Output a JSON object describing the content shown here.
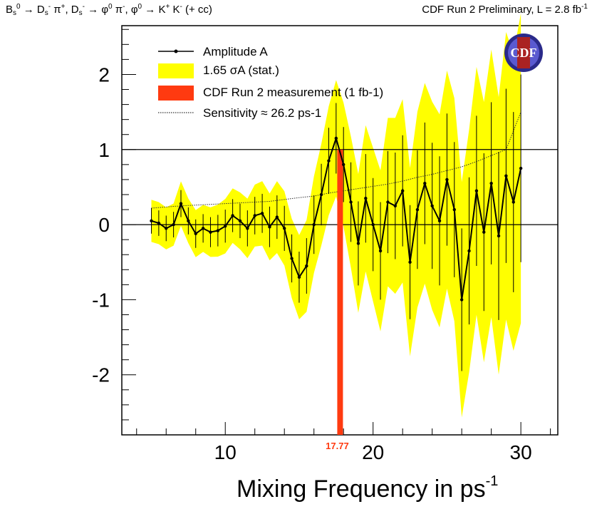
{
  "header": {
    "left_text": "Bs0 → Ds- π+, Ds- → φ0 π-, φ0 → K+ K- (+ cc)",
    "right_text": "CDF Run 2 Preliminary, L = 2.8 fb-1"
  },
  "logo_text": "CDF",
  "chart_data": {
    "type": "line",
    "title": "",
    "xlabel": "Mixing Frequency in ps-1",
    "ylabel": "",
    "xlim": [
      3,
      32.5
    ],
    "ylim": [
      -2.8,
      2.65
    ],
    "x_ticks": [
      10,
      20,
      30
    ],
    "y_ticks": [
      -2,
      -1,
      0,
      1,
      2
    ],
    "reference_lines": [
      0,
      1
    ],
    "measurement": {
      "value": 17.77,
      "label": "17.77",
      "color": "#ff3a10"
    },
    "legend": [
      {
        "label": "Amplitude A",
        "style": "line-marker"
      },
      {
        "label": "1.65 σA (stat.)",
        "style": "band",
        "color": "#ffff00"
      },
      {
        "label": "CDF Run 2 measurement (1 fb-1)",
        "style": "band",
        "color": "#ff3a10"
      },
      {
        "label": "Sensitivity ≈ 26.2 ps-1",
        "style": "dotted"
      }
    ],
    "series": [
      {
        "name": "Amplitude A",
        "x": [
          5,
          5.5,
          6,
          6.5,
          7,
          7.5,
          8,
          8.5,
          9,
          9.5,
          10,
          10.5,
          11,
          11.5,
          12,
          12.5,
          13,
          13.5,
          14,
          14.5,
          15,
          15.5,
          16,
          16.5,
          17,
          17.5,
          18,
          18.5,
          19,
          19.5,
          20,
          20.5,
          21,
          21.5,
          22,
          22.5,
          23,
          23.5,
          24,
          24.5,
          25,
          25.5,
          26,
          26.5,
          27,
          27.5,
          28,
          28.5,
          29,
          29.5,
          30
        ],
        "amplitude": [
          0.05,
          0.02,
          -0.05,
          0.0,
          0.28,
          0.05,
          -0.12,
          -0.05,
          -0.1,
          -0.08,
          -0.02,
          0.12,
          0.05,
          -0.05,
          0.12,
          0.15,
          -0.03,
          0.1,
          -0.05,
          -0.45,
          -0.7,
          -0.55,
          0.0,
          0.4,
          0.85,
          1.15,
          0.8,
          0.3,
          -0.25,
          0.35,
          0.0,
          -0.35,
          0.3,
          0.25,
          0.45,
          -0.5,
          0.2,
          0.55,
          0.25,
          0.05,
          0.6,
          0.2,
          -1.0,
          -0.35,
          0.45,
          -0.1,
          0.55,
          -0.15,
          0.65,
          0.3,
          0.75
        ],
        "error": [
          0.17,
          0.17,
          0.17,
          0.17,
          0.18,
          0.18,
          0.19,
          0.19,
          0.2,
          0.21,
          0.22,
          0.22,
          0.23,
          0.24,
          0.25,
          0.26,
          0.27,
          0.29,
          0.3,
          0.32,
          0.34,
          0.37,
          0.39,
          0.41,
          0.44,
          0.47,
          0.5,
          0.53,
          0.56,
          0.59,
          0.62,
          0.65,
          0.68,
          0.71,
          0.74,
          0.76,
          0.79,
          0.81,
          0.84,
          0.86,
          0.88,
          0.9,
          0.95,
          0.98,
          1.0,
          1.05,
          1.08,
          1.12,
          1.16,
          1.2,
          1.25
        ]
      },
      {
        "name": "Sensitivity ≈ 26.2 ps-1",
        "x": [
          5,
          7,
          9,
          11,
          13,
          15,
          16,
          17,
          18,
          19,
          20,
          21,
          22,
          23,
          24,
          25,
          26,
          27,
          28,
          29,
          30
        ],
        "values": [
          0.22,
          0.25,
          0.27,
          0.29,
          0.31,
          0.36,
          0.38,
          0.42,
          0.45,
          0.48,
          0.51,
          0.54,
          0.58,
          0.63,
          0.67,
          0.72,
          0.77,
          0.84,
          0.92,
          1.0,
          1.5
        ]
      }
    ],
    "grid": false,
    "legend_position": "top-left"
  }
}
